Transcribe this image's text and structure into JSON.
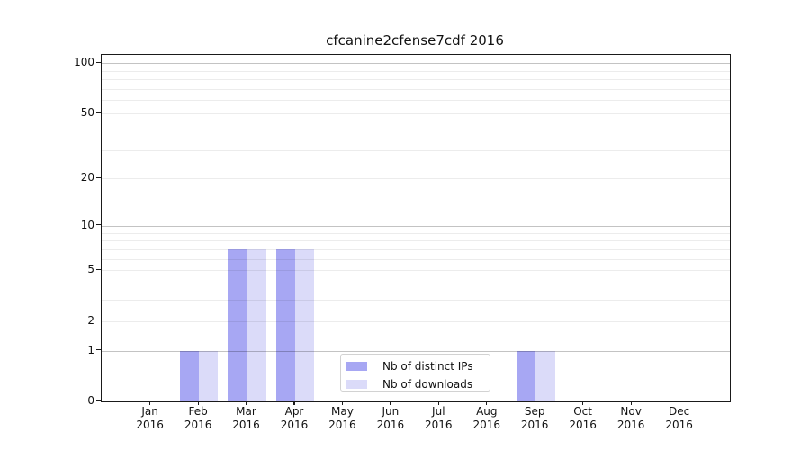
{
  "title": "cfcanine2cfense7cdf 2016",
  "chart_data": {
    "type": "bar",
    "title": "cfcanine2cfense7cdf 2016",
    "x_tick_months": [
      "Jan",
      "Feb",
      "Mar",
      "Apr",
      "May",
      "Jun",
      "Jul",
      "Aug",
      "Sep",
      "Oct",
      "Nov",
      "Dec"
    ],
    "year": "2016",
    "categories": [
      "Jan 2016",
      "Feb 2016",
      "Mar 2016",
      "Apr 2016",
      "May 2016",
      "Jun 2016",
      "Jul 2016",
      "Aug 2016",
      "Sep 2016",
      "Oct 2016",
      "Nov 2016",
      "Dec 2016"
    ],
    "series": [
      {
        "name": "Nb of distinct IPs",
        "color": "#a7a7f3",
        "values": [
          0,
          1,
          7,
          7,
          0,
          0,
          0,
          0,
          1,
          0,
          0,
          0
        ]
      },
      {
        "name": "Nb of downloads",
        "color": "#dbdbf9",
        "values": [
          0,
          1,
          7,
          7,
          0,
          0,
          0,
          0,
          1,
          0,
          0,
          0
        ]
      }
    ],
    "yscale": "log1p",
    "yticks": [
      0,
      1,
      2,
      5,
      10,
      20,
      50,
      100
    ],
    "ylim": [
      0,
      112
    ],
    "grid": "horizontal",
    "legend_position": "lower-center",
    "xlabel": "",
    "ylabel": ""
  }
}
